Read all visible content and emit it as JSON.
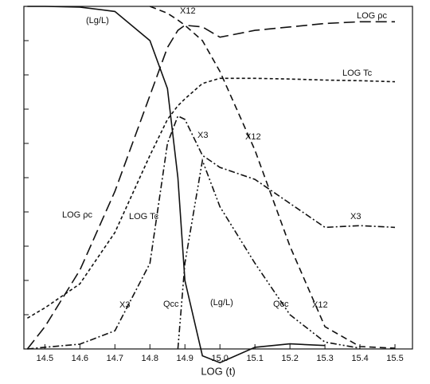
{
  "chart_data": {
    "type": "line",
    "x_label": "LOG (t)",
    "x": [
      14.45,
      14.5,
      14.6,
      14.7,
      14.8,
      14.85,
      14.88,
      14.9,
      14.95,
      15.0,
      15.1,
      15.2,
      15.3,
      15.4,
      15.5
    ],
    "series": [
      {
        "color": "#111111",
        "style": "solid",
        "values": [
          10,
          10,
          9.98,
          9.85,
          9.0,
          7.6,
          5.0,
          2.0,
          -0.2,
          -0.4,
          0.05,
          0.15,
          0.1,
          null,
          null
        ]
      },
      {
        "color": "#111111",
        "style": "long-dash",
        "values": [
          0,
          0.65,
          2.3,
          4.6,
          7.4,
          8.8,
          9.3,
          9.45,
          9.4,
          9.1,
          9.3,
          9.4,
          9.5,
          9.55,
          9.55
        ]
      },
      {
        "color": "#111111",
        "style": "dash",
        "values": [
          null,
          null,
          null,
          null,
          10,
          9.8,
          9.6,
          9.45,
          9.0,
          8.1,
          5.8,
          3.0,
          0.65,
          0.07,
          0.02
        ]
      },
      {
        "color": "#111111",
        "style": "short-dash",
        "values": [
          0.9,
          1.2,
          1.9,
          3.4,
          5.65,
          6.7,
          7.1,
          7.3,
          7.75,
          7.9,
          7.9,
          7.88,
          7.85,
          7.83,
          7.8
        ]
      },
      {
        "color": "#111111",
        "style": "dash-dot",
        "values": [
          0,
          0.05,
          0.14,
          0.53,
          2.5,
          6.0,
          6.8,
          6.7,
          5.65,
          5.3,
          4.95,
          4.25,
          3.55,
          3.6,
          3.55
        ]
      },
      {
        "color": "#111111",
        "style": "dash-dot-dot",
        "values": [
          null,
          null,
          null,
          null,
          null,
          null,
          0,
          2.5,
          5.5,
          4.15,
          2.5,
          1.0,
          0.2,
          0.02,
          null
        ]
      }
    ],
    "annotations": [
      "(Lg/L)",
      "X12",
      "LOG ρc",
      "LOG Tc",
      "X3",
      "X12",
      "LOG ρc",
      "LOG Tc",
      "X3",
      "X3",
      "Qcc",
      "(Lg/L)",
      "Qcc",
      "X12"
    ],
    "xlim": [
      14.44,
      15.55
    ],
    "xticks": [
      14.5,
      14.6,
      14.7,
      14.8,
      14.9,
      {
        "value": 15.0,
        "label": "15.0"
      },
      15.1,
      15.2,
      15.3,
      15.4,
      15.5
    ],
    "ylim": [
      0,
      10
    ],
    "yticks": [
      1,
      2,
      3,
      4,
      5,
      6,
      7,
      8,
      9
    ]
  }
}
